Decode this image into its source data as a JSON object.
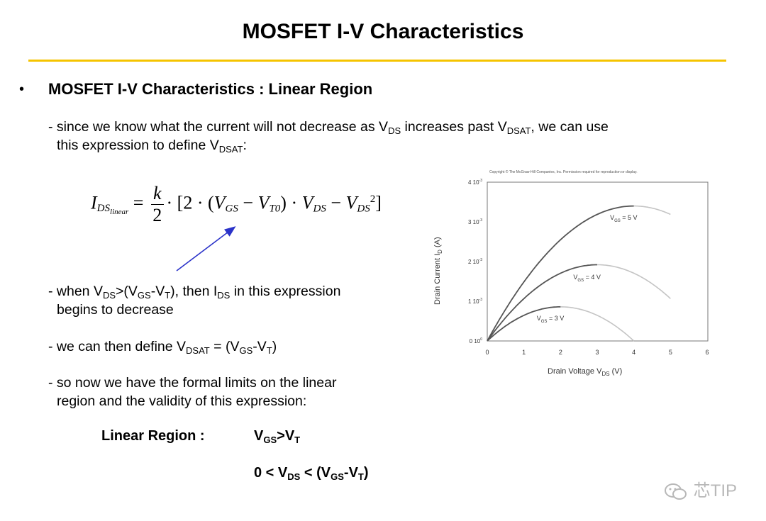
{
  "slide": {
    "title": "MOSFET I-V Characteristics",
    "bullet": "•",
    "heading": "MOSFET I-V Characteristics : Linear Region"
  },
  "intro": {
    "dash": "- since we know what the current will not decrease as V",
    "sub1": "DS",
    "mid": " increases past V",
    "sub2": "DSAT",
    "end": ", we can use",
    "line2": "this expression to define V",
    "sub3": "DSAT",
    "line2_end": ":"
  },
  "formula": {
    "lhs": "I",
    "lhs_sub": "DS",
    "lhs_subsub": "linear",
    "eq": "=",
    "num": "k",
    "den": "2",
    "body_a": "· [2 · (",
    "vgs": "V",
    "vgs_sub": "GS",
    "minus": " − ",
    "vt0": "V",
    "vt0_sub": "T0",
    "body_b": ") · ",
    "vds": "V",
    "vds_sub": "DS",
    "minus2": " − ",
    "vds2": "V",
    "vds2_sub": "DS",
    "vds2_sup": "2",
    "close": "]"
  },
  "point_when": {
    "a": "- when V",
    "s1": "DS",
    "b": ">(V",
    "s2": "GS",
    "c": "-V",
    "s3": "T",
    "d": "), then I",
    "s4": "DS",
    "e": " in this expression",
    "line2": "begins to decrease"
  },
  "point_define": {
    "a": "- we can then define V",
    "s1": "DSAT",
    "b": " = (V",
    "s2": "GS",
    "c": "-V",
    "s3": "T",
    "d": ")"
  },
  "point_limits": {
    "line1": "- so now we have the formal limits on the linear",
    "line2": "region and the validity of this expression:"
  },
  "region": {
    "label": "Linear Region :",
    "c1_a": "V",
    "c1_s1": "GS",
    "c1_b": ">V",
    "c1_s2": "T",
    "c2_a": "0 < V",
    "c2_s1": "DS",
    "c2_b": " < (V",
    "c2_s2": "GS",
    "c2_c": "-V",
    "c2_s3": "T",
    "c2_d": ")"
  },
  "watermark": {
    "text": "芯TIP"
  },
  "colors": {
    "rule": "#f5c400",
    "arrow": "#2b33c9",
    "curve": "#555555",
    "curve_faint": "#c4c4c4"
  },
  "chart_data": {
    "type": "line",
    "title": "",
    "copyright": "Copyright © The McGraw-Hill Companies, Inc. Permission required for reproduction or display.",
    "xlabel": "Drain Voltage V",
    "xlabel_sub": "DS",
    "xlabel_unit": " (V)",
    "ylabel": "Drain Current I",
    "ylabel_sub": "D",
    "ylabel_unit": " (A)",
    "xlim": [
      0,
      6
    ],
    "ylim": [
      0,
      0.004
    ],
    "xticks": [
      "0",
      "1",
      "2",
      "3",
      "4",
      "5",
      "6"
    ],
    "yticks": [
      "0 10",
      "1 10",
      "2 10",
      "3 10",
      "4 10"
    ],
    "ytick_exp": [
      "0",
      "-3",
      "-3",
      "-3",
      "-3"
    ],
    "ytick_values": [
      0,
      0.001,
      0.002,
      0.003,
      0.004
    ],
    "series": [
      {
        "name": "V",
        "name_sub": "GS",
        "name_tail": " = 3 V",
        "vsat": 2,
        "peak": 0.00086,
        "xmax": 4,
        "label_x": 1.35,
        "label_y": 0.00052
      },
      {
        "name": "V",
        "name_sub": "GS",
        "name_tail": " = 4 V",
        "vsat": 3,
        "peak": 0.00192,
        "xmax": 5,
        "label_x": 2.35,
        "label_y": 0.00155
      },
      {
        "name": "V",
        "name_sub": "GS",
        "name_tail": " = 5 V",
        "vsat": 4,
        "peak": 0.0034,
        "xmax": 5,
        "label_x": 3.35,
        "label_y": 0.00305
      }
    ]
  }
}
